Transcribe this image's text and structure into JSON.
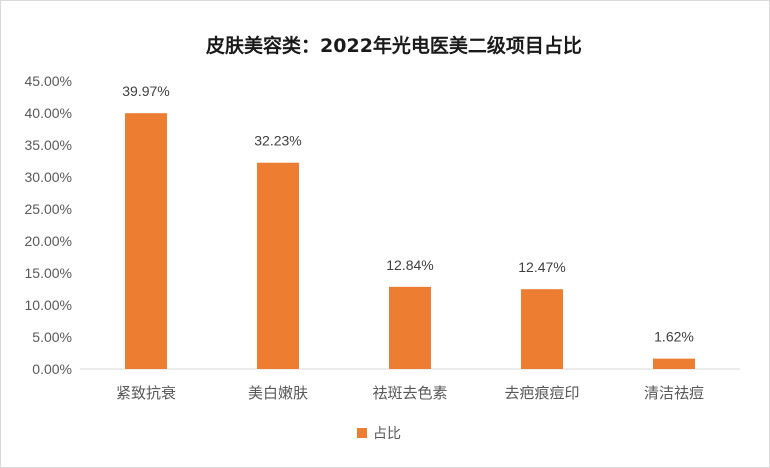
{
  "chart_data": {
    "type": "bar",
    "title": "皮肤美容类：2022年光电医美二级项目占比",
    "categories": [
      "紧致抗衰",
      "美白嫩肤",
      "祛斑去色素",
      "去疤痕痘印",
      "清洁祛痘"
    ],
    "series": [
      {
        "name": "占比",
        "values": [
          39.97,
          32.23,
          12.84,
          12.47,
          1.62
        ],
        "data_labels": [
          "39.97%",
          "32.23%",
          "12.84%",
          "12.47%",
          "1.62%"
        ],
        "color": "#ed7d31"
      }
    ],
    "yticks": [
      "0.00%",
      "5.00%",
      "10.00%",
      "15.00%",
      "20.00%",
      "25.00%",
      "30.00%",
      "35.00%",
      "40.00%",
      "45.00%"
    ],
    "ylim": [
      0,
      45
    ],
    "grid": false,
    "legend_position": "bottom",
    "xlabel": "",
    "ylabel": ""
  }
}
